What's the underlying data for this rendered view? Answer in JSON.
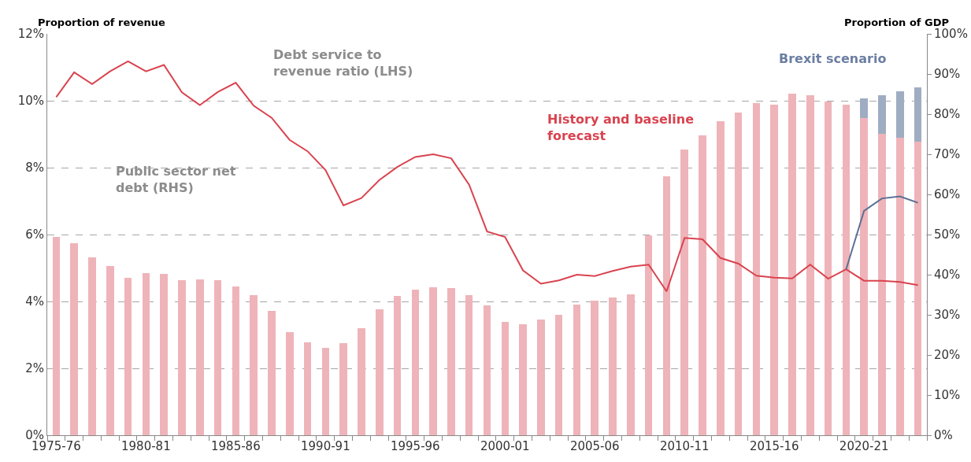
{
  "chart_data": {
    "type": "bar",
    "stacked": true,
    "ylabel": "Proportion of revenue",
    "y2label": "Proportion of GDP",
    "categories": [
      "1975-76",
      null,
      null,
      null,
      null,
      "1980-81",
      null,
      null,
      null,
      null,
      "1985-86",
      null,
      null,
      null,
      null,
      "1990-91",
      null,
      null,
      null,
      null,
      "1995-96",
      null,
      null,
      null,
      null,
      "2000-01",
      null,
      null,
      null,
      null,
      "2005-06",
      null,
      null,
      null,
      null,
      "2010-11",
      null,
      null,
      null,
      null,
      "2015-16",
      null,
      null,
      null,
      null,
      "2020-21",
      null,
      null,
      null
    ],
    "series": [
      {
        "axis": "y2",
        "color": "#eeb4b9",
        "values": [
          49.4,
          47.9,
          44.4,
          42.2,
          39.2,
          40.4,
          40.1,
          38.7,
          38.9,
          38.7,
          37.1,
          34.9,
          31.0,
          25.6,
          23.1,
          21.7,
          22.9,
          26.7,
          31.3,
          34.7,
          36.2,
          36.9,
          36.7,
          35.0,
          32.4,
          28.2,
          27.6,
          28.8,
          30.0,
          32.6,
          33.5,
          34.3,
          35.1,
          49.8,
          64.5,
          71.1,
          74.8,
          78.3,
          80.3,
          82.7,
          82.3,
          85.1,
          84.7,
          83.1,
          82.3,
          79.1,
          75.1,
          74.1,
          73.1
        ]
      },
      {
        "axis": "y2",
        "name": "Brexit scenario",
        "color": "#9fadc3",
        "values": [
          null,
          null,
          null,
          null,
          null,
          null,
          null,
          null,
          null,
          null,
          null,
          null,
          null,
          null,
          null,
          null,
          null,
          null,
          null,
          null,
          null,
          null,
          null,
          null,
          null,
          null,
          null,
          null,
          null,
          null,
          null,
          null,
          null,
          null,
          null,
          null,
          null,
          null,
          null,
          null,
          null,
          null,
          null,
          null,
          null,
          4.9,
          9.7,
          11.5,
          13.6
        ]
      },
      {
        "type": "line",
        "axis": "y",
        "name": "History and baseline forecast",
        "color": "#d9434f",
        "values": [
          10.11,
          10.85,
          10.5,
          10.88,
          11.18,
          10.88,
          11.07,
          10.25,
          9.87,
          10.26,
          10.54,
          9.85,
          9.49,
          8.83,
          8.49,
          7.93,
          6.87,
          7.09,
          7.63,
          8.02,
          8.32,
          8.4,
          8.28,
          7.49,
          6.09,
          5.93,
          4.93,
          4.53,
          4.63,
          4.8,
          4.76,
          4.91,
          5.04,
          5.1,
          4.3,
          5.9,
          5.86,
          5.3,
          5.13,
          4.77,
          4.71,
          4.69,
          5.1,
          4.68,
          4.96,
          4.62,
          4.62,
          4.58,
          4.49
        ]
      },
      {
        "type": "line",
        "axis": "y",
        "color": "#5a6f95",
        "values": [
          null,
          null,
          null,
          null,
          null,
          null,
          null,
          null,
          null,
          null,
          null,
          null,
          null,
          null,
          null,
          null,
          null,
          null,
          null,
          null,
          null,
          null,
          null,
          null,
          null,
          null,
          null,
          null,
          null,
          null,
          null,
          null,
          null,
          null,
          null,
          null,
          null,
          null,
          null,
          null,
          null,
          null,
          null,
          null,
          4.96,
          6.71,
          7.08,
          7.14,
          6.95
        ]
      }
    ],
    "ylim": [
      0,
      12
    ],
    "yticks": [
      {
        "value": 0,
        "label": "0%"
      },
      {
        "value": 2,
        "label": "2%"
      },
      {
        "value": 4,
        "label": "4%"
      },
      {
        "value": 6,
        "label": "6%"
      },
      {
        "value": 8,
        "label": "8%"
      },
      {
        "value": 10,
        "label": "10%"
      },
      {
        "value": 12,
        "label": "12%"
      }
    ],
    "y2lim": [
      0,
      100
    ],
    "y2ticks": [
      {
        "value": 0,
        "label": "0%"
      },
      {
        "value": 10,
        "label": "10%"
      },
      {
        "value": 20,
        "label": "20%"
      },
      {
        "value": 30,
        "label": "30%"
      },
      {
        "value": 40,
        "label": "40%"
      },
      {
        "value": 50,
        "label": "50%"
      },
      {
        "value": 60,
        "label": "60%"
      },
      {
        "value": 70,
        "label": "70%"
      },
      {
        "value": 80,
        "label": "80%"
      },
      {
        "value": 90,
        "label": "90%"
      },
      {
        "value": 100,
        "label": "100%"
      }
    ],
    "annotations": [
      "Debt service to revenue ratio (LHS)",
      "Public sector net debt (RHS)"
    ],
    "grid": "y",
    "marker": "none",
    "line_style": "solid"
  }
}
